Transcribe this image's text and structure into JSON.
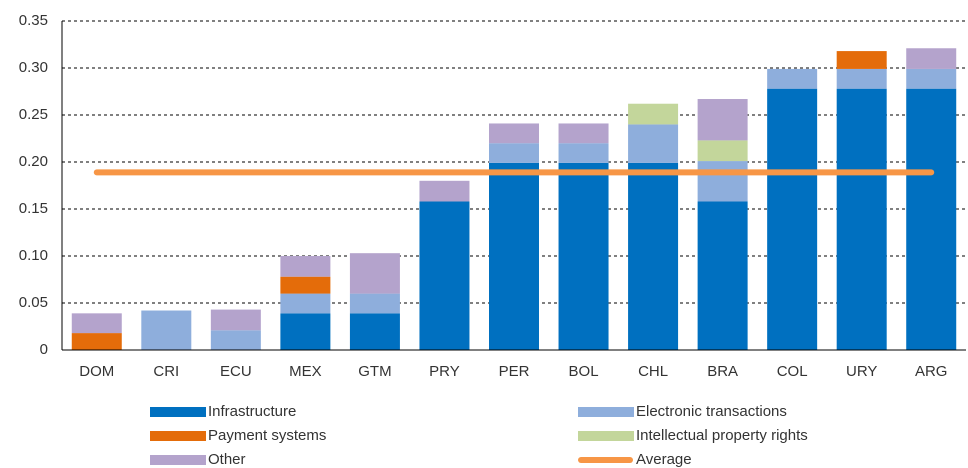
{
  "chart_data": {
    "type": "bar",
    "stacked": true,
    "categories": [
      "DOM",
      "CRI",
      "ECU",
      "MEX",
      "GTM",
      "PRY",
      "PER",
      "BOL",
      "CHL",
      "BRA",
      "COL",
      "URY",
      "ARG"
    ],
    "series": [
      {
        "name": "Infrastructure",
        "color": "#0070c0",
        "values": [
          0,
          0,
          0,
          0.039,
          0.039,
          0.158,
          0.199,
          0.199,
          0.199,
          0.158,
          0.278,
          0.278,
          0.278
        ]
      },
      {
        "name": "Electronic transactions",
        "color": "#8eaedc",
        "values": [
          0,
          0.042,
          0.021,
          0.021,
          0.021,
          0,
          0.021,
          0.021,
          0.041,
          0.043,
          0.021,
          0.021,
          0.021
        ]
      },
      {
        "name": "Payment systems",
        "color": "#e46c0a",
        "values": [
          0.018,
          0,
          0,
          0.018,
          0,
          0,
          0,
          0,
          0,
          0,
          0,
          0.019,
          0
        ]
      },
      {
        "name": "Intellectual  property rights",
        "color": "#c3d69b",
        "values": [
          0,
          0,
          0,
          0,
          0,
          0,
          0,
          0,
          0.022,
          0.022,
          0,
          0,
          0
        ]
      },
      {
        "name": "Other",
        "color": "#b4a3cc",
        "values": [
          0.021,
          0,
          0.022,
          0.022,
          0.043,
          0.022,
          0.021,
          0.021,
          0,
          0.044,
          0,
          0,
          0.022
        ]
      }
    ],
    "average": {
      "name": "Average",
      "value": 0.189,
      "color": "#f79646"
    },
    "ylim": [
      0,
      0.35
    ],
    "yticks": [
      0,
      0.05,
      {
        "value": 0.1,
        "label": "0.10"
      },
      0.15,
      {
        "value": 0.2,
        "label": "0.20"
      },
      0.25,
      {
        "value": 0.3,
        "label": "0.30"
      },
      0.35
    ],
    "grid": true
  }
}
